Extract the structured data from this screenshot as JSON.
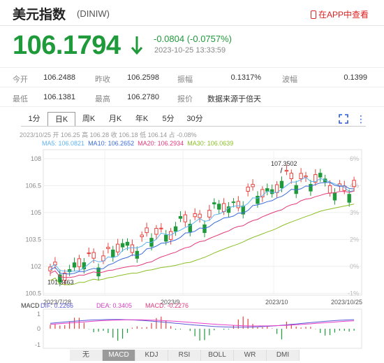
{
  "header": {
    "title": "美元指数",
    "code": "(DINIW)",
    "app_link": "在APP中查看"
  },
  "quote": {
    "price": "106.1794",
    "change": "-0.0804 (-0.0757%)",
    "time": "2023-10-25 13:33:59",
    "color": "#1f9a3b"
  },
  "stats": [
    [
      {
        "label": "今开",
        "value": "106.2488"
      },
      {
        "label": "昨收",
        "value": "106.2598"
      },
      {
        "label": "振幅",
        "value": "0.1317%"
      },
      {
        "label": "波幅",
        "value": "0.1399"
      }
    ],
    [
      {
        "label": "最低",
        "value": "106.1381"
      },
      {
        "label": "最高",
        "value": "106.2780"
      },
      {
        "label": "报价",
        "value": "数据来源于倍天"
      }
    ]
  ],
  "tabs": [
    "1分",
    "日K",
    "周K",
    "月K",
    "年K",
    "5分",
    "30分"
  ],
  "active_tab": "日K",
  "info": {
    "ohlc": "2023/10/25 开 106.25 高 106.28 收 106.18 低 106.14 占 -0.08%",
    "ma5": "MA5: 106.0821",
    "ma10": "MA10: 106.2652",
    "ma20": "MA20: 106.2934",
    "ma30": "MA30: 106.0639"
  },
  "macd": {
    "label": "MACD",
    "dif": "DIF: 0.2266",
    "dea": "DEA: 0.3405",
    "macd": "MACD: -0.2276"
  },
  "bottom_tabs": [
    "无",
    "MACD",
    "KDJ",
    "RSI",
    "BOLL",
    "WR",
    "DMI"
  ],
  "active_bottom": "MACD",
  "chart_data": {
    "type": "candlestick",
    "y_ticks": [
      "108",
      "106.5",
      "105",
      "103.5",
      "102",
      "100.5"
    ],
    "right_ticks": [
      "6%",
      "4%",
      "3%",
      "2%",
      "0%",
      "-1%"
    ],
    "x_labels": [
      "2023/7/28",
      "2023/9",
      "2023/10",
      "2023/10/25"
    ],
    "high_label": "107.3502",
    "low_label": "101.3463",
    "macd_ticks": [
      "1",
      "0",
      "-1"
    ],
    "colors": {
      "up": "#e8433e",
      "down": "#1f9a3b",
      "ma5": "#5fb2f2",
      "ma10": "#5bb5e8",
      "ma20": "#e23a7a",
      "ma30": "#8cbf26",
      "dif": "#5a5ad6",
      "dea": "#e63ec7"
    }
  }
}
